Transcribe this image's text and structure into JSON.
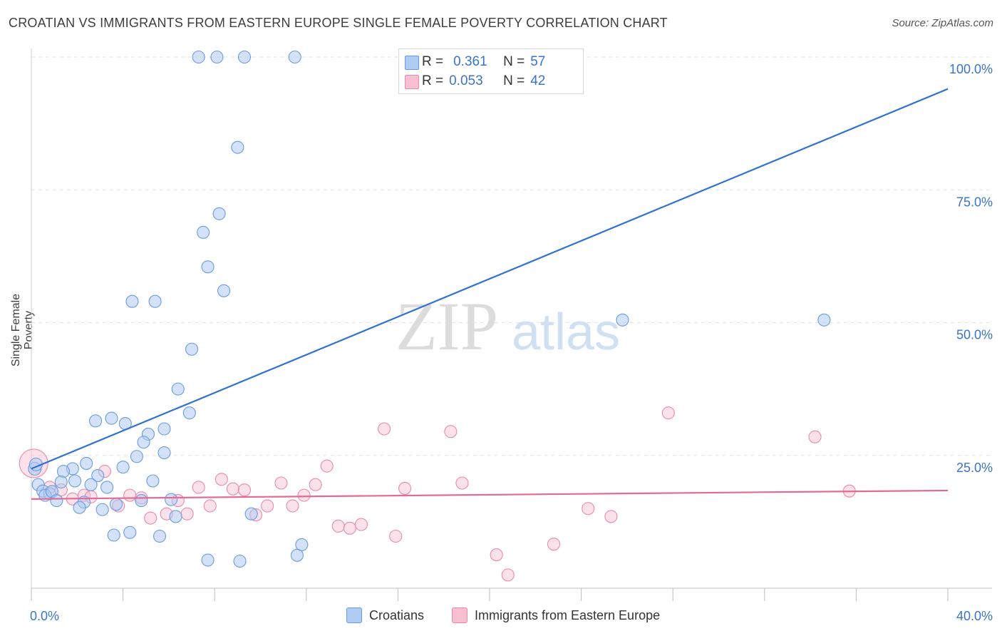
{
  "title": "CROATIAN VS IMMIGRANTS FROM EASTERN EUROPE SINGLE FEMALE POVERTY CORRELATION CHART",
  "source": "Source: ZipAtlas.com",
  "watermark": {
    "zip": "ZIP",
    "atlas": "atlas"
  },
  "legend": {
    "r_label": "R =",
    "n_label": "N =",
    "series1": {
      "r": "0.361",
      "n": "57"
    },
    "series2": {
      "r": "0.053",
      "n": "42"
    }
  },
  "bottom_legend": {
    "series1": "Croatians",
    "series2": "Immigrants from Eastern Europe"
  },
  "colors": {
    "blue_fill": "#aecbf2",
    "blue_stroke": "#6b9be0",
    "blue_line": "#2f72d0",
    "pink_fill": "#f7bfd0",
    "pink_stroke": "#e98aa8",
    "pink_line": "#e26b96",
    "tick_text": "#3a74c8"
  },
  "chart_data": {
    "type": "scatter",
    "title": "CROATIAN VS IMMIGRANTS FROM EASTERN EUROPE SINGLE FEMALE POVERTY CORRELATION CHART",
    "xlabel": "",
    "ylabel": "Single Female Poverty",
    "xlim": [
      0,
      40
    ],
    "ylim": [
      0,
      105
    ],
    "x_tick_labels": [
      "0.0%",
      "40.0%"
    ],
    "y_ticks": [
      25,
      50,
      75,
      100
    ],
    "y_tick_labels": [
      "25.0%",
      "50.0%",
      "75.0%",
      "100.0%"
    ],
    "grid": true,
    "legend_position": "top-center",
    "series": [
      {
        "name": "Croatians",
        "color": "#6b9be0",
        "r": 0.361,
        "n": 57,
        "trend": {
          "x": [
            0,
            40
          ],
          "y": [
            22.5,
            94.0
          ]
        },
        "points": [
          {
            "x": 7.3,
            "y": 100
          },
          {
            "x": 8.1,
            "y": 100
          },
          {
            "x": 9.3,
            "y": 100
          },
          {
            "x": 11.5,
            "y": 100
          },
          {
            "x": 9.0,
            "y": 83
          },
          {
            "x": 8.2,
            "y": 70.5
          },
          {
            "x": 7.5,
            "y": 67
          },
          {
            "x": 7.7,
            "y": 60.5
          },
          {
            "x": 8.4,
            "y": 56
          },
          {
            "x": 4.4,
            "y": 54
          },
          {
            "x": 5.4,
            "y": 54
          },
          {
            "x": 25.8,
            "y": 50.5
          },
          {
            "x": 34.6,
            "y": 50.5
          },
          {
            "x": 7.0,
            "y": 45
          },
          {
            "x": 6.4,
            "y": 37.5
          },
          {
            "x": 6.9,
            "y": 33
          },
          {
            "x": 2.8,
            "y": 31.5
          },
          {
            "x": 3.5,
            "y": 32
          },
          {
            "x": 4.1,
            "y": 31
          },
          {
            "x": 5.1,
            "y": 29
          },
          {
            "x": 4.9,
            "y": 27.5
          },
          {
            "x": 5.8,
            "y": 30
          },
          {
            "x": 5.8,
            "y": 25.5
          },
          {
            "x": 4.6,
            "y": 24.8
          },
          {
            "x": 2.4,
            "y": 23.5
          },
          {
            "x": 1.8,
            "y": 22.5
          },
          {
            "x": 1.4,
            "y": 22
          },
          {
            "x": 4.0,
            "y": 22.8
          },
          {
            "x": 2.9,
            "y": 21.2
          },
          {
            "x": 1.9,
            "y": 20.2
          },
          {
            "x": 1.3,
            "y": 20
          },
          {
            "x": 0.3,
            "y": 19.5
          },
          {
            "x": 2.6,
            "y": 19.5
          },
          {
            "x": 3.3,
            "y": 19
          },
          {
            "x": 5.3,
            "y": 20.2
          },
          {
            "x": 0.5,
            "y": 18.3
          },
          {
            "x": 0.8,
            "y": 17.8
          },
          {
            "x": 0.6,
            "y": 17.5
          },
          {
            "x": 0.9,
            "y": 18.2
          },
          {
            "x": 1.1,
            "y": 16.5
          },
          {
            "x": 2.3,
            "y": 16.2
          },
          {
            "x": 3.7,
            "y": 15.8
          },
          {
            "x": 4.8,
            "y": 16.5
          },
          {
            "x": 6.1,
            "y": 16.7
          },
          {
            "x": 2.1,
            "y": 15.2
          },
          {
            "x": 3.1,
            "y": 14.8
          },
          {
            "x": 6.3,
            "y": 13.5
          },
          {
            "x": 9.6,
            "y": 14
          },
          {
            "x": 3.6,
            "y": 10
          },
          {
            "x": 4.3,
            "y": 10.5
          },
          {
            "x": 5.6,
            "y": 9.8
          },
          {
            "x": 11.8,
            "y": 8.2
          },
          {
            "x": 11.6,
            "y": 6.2
          },
          {
            "x": 7.7,
            "y": 5.3
          },
          {
            "x": 9.1,
            "y": 5.1
          },
          {
            "x": 0.15,
            "y": 22.5
          },
          {
            "x": 0.2,
            "y": 23.3
          }
        ]
      },
      {
        "name": "Immigrants from Eastern Europe",
        "color": "#e98aa8",
        "r": 0.053,
        "n": 42,
        "trend": {
          "x": [
            0,
            40
          ],
          "y": [
            16.8,
            18.4
          ]
        },
        "points": [
          {
            "x": 0.1,
            "y": 23.5
          },
          {
            "x": 0.8,
            "y": 19
          },
          {
            "x": 1.3,
            "y": 18.5
          },
          {
            "x": 1.8,
            "y": 16.8
          },
          {
            "x": 2.3,
            "y": 17.5
          },
          {
            "x": 2.6,
            "y": 17.2
          },
          {
            "x": 3.2,
            "y": 22
          },
          {
            "x": 3.8,
            "y": 15.5
          },
          {
            "x": 4.3,
            "y": 17.5
          },
          {
            "x": 4.8,
            "y": 17
          },
          {
            "x": 5.2,
            "y": 13.2
          },
          {
            "x": 5.9,
            "y": 14
          },
          {
            "x": 6.4,
            "y": 16.5
          },
          {
            "x": 6.8,
            "y": 14
          },
          {
            "x": 7.3,
            "y": 19
          },
          {
            "x": 7.8,
            "y": 15.5
          },
          {
            "x": 8.3,
            "y": 20.5
          },
          {
            "x": 8.8,
            "y": 18.7
          },
          {
            "x": 9.3,
            "y": 18.5
          },
          {
            "x": 9.8,
            "y": 13.8
          },
          {
            "x": 10.3,
            "y": 15.5
          },
          {
            "x": 10.9,
            "y": 19.8
          },
          {
            "x": 11.4,
            "y": 15.5
          },
          {
            "x": 11.9,
            "y": 17.5
          },
          {
            "x": 12.4,
            "y": 19.5
          },
          {
            "x": 12.9,
            "y": 23
          },
          {
            "x": 13.4,
            "y": 11.7
          },
          {
            "x": 13.9,
            "y": 11.3
          },
          {
            "x": 14.4,
            "y": 12
          },
          {
            "x": 15.4,
            "y": 30
          },
          {
            "x": 15.9,
            "y": 9.8
          },
          {
            "x": 16.3,
            "y": 18.8
          },
          {
            "x": 18.3,
            "y": 29.5
          },
          {
            "x": 18.8,
            "y": 19.8
          },
          {
            "x": 20.3,
            "y": 6.3
          },
          {
            "x": 20.8,
            "y": 2.5
          },
          {
            "x": 22.8,
            "y": 8.3
          },
          {
            "x": 24.3,
            "y": 15
          },
          {
            "x": 25.3,
            "y": 13.5
          },
          {
            "x": 27.8,
            "y": 33
          },
          {
            "x": 34.2,
            "y": 28.5
          },
          {
            "x": 35.7,
            "y": 18.3
          }
        ]
      }
    ]
  }
}
